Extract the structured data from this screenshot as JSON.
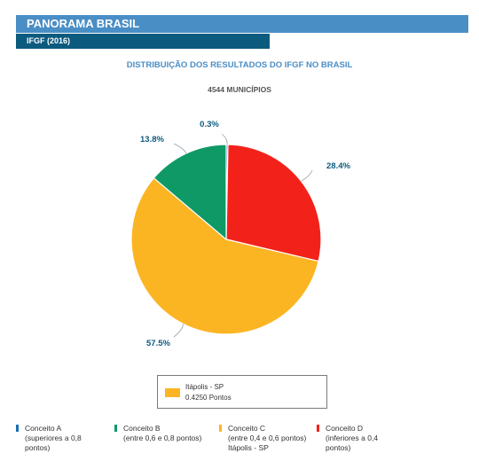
{
  "header": {
    "title": "PANORAMA BRASIL",
    "subtitle": "IFGF (2016)"
  },
  "chart_data": {
    "type": "pie",
    "title": "DISTRIBUIÇÃO DOS RESULTADOS DO IFGF NO BRASIL",
    "subtitle": "4544 MUNICÍPIOS",
    "slices": [
      {
        "name": "Conceito A",
        "value": 0.3,
        "label": "0.3%",
        "color": "#1a6fb0"
      },
      {
        "name": "Conceito D",
        "value": 28.4,
        "label": "28.4%",
        "color": "#f2221b"
      },
      {
        "name": "Conceito C",
        "value": 57.5,
        "label": "57.5%",
        "color": "#fbb523"
      },
      {
        "name": "Conceito B",
        "value": 13.8,
        "label": "13.8%",
        "color": "#0e9966"
      }
    ],
    "legend": [
      {
        "name": "Conceito A",
        "line2": "(superiores a 0,8",
        "line3": "pontos)",
        "color": "#1a6fb0"
      },
      {
        "name": "Conceito B",
        "line2": "(entre 0,6 e 0,8 pontos)",
        "line3": "",
        "color": "#0e9966"
      },
      {
        "name": "Conceito C",
        "line2": "(entre 0,4 e 0,6 pontos)",
        "line3": "Itápolis - SP",
        "color": "#fbb523"
      },
      {
        "name": "Conceito D",
        "line2": "(inferiores a 0,4",
        "line3": "pontos)",
        "color": "#f2221b"
      }
    ]
  },
  "tooltip": {
    "line1": "Itápolis - SP",
    "line2": "0.4250 Pontos",
    "color": "#fbb523"
  }
}
